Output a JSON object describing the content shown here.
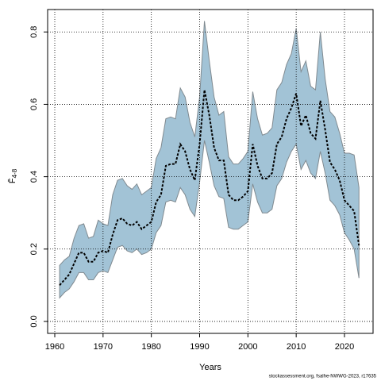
{
  "chart_data": {
    "type": "line_band",
    "xlabel": "Years",
    "ylabel": "F̄",
    "ylabel_subscript": "4-8",
    "footer": "stockassessment.org, fsalhe-NWWG-2023, r17635",
    "x": [
      1961,
      1962,
      1963,
      1964,
      1965,
      1966,
      1967,
      1968,
      1969,
      1970,
      1971,
      1972,
      1973,
      1974,
      1975,
      1976,
      1977,
      1978,
      1979,
      1980,
      1981,
      1982,
      1983,
      1984,
      1985,
      1986,
      1987,
      1988,
      1989,
      1990,
      1991,
      1992,
      1993,
      1994,
      1995,
      1996,
      1997,
      1998,
      1999,
      2000,
      2001,
      2002,
      2003,
      2004,
      2005,
      2006,
      2007,
      2008,
      2009,
      2010,
      2011,
      2012,
      2013,
      2014,
      2015,
      2016,
      2017,
      2018,
      2019,
      2020,
      2021,
      2022,
      2023
    ],
    "values": [
      0.1,
      0.115,
      0.13,
      0.16,
      0.19,
      0.19,
      0.165,
      0.165,
      0.19,
      0.195,
      0.19,
      0.24,
      0.28,
      0.285,
      0.27,
      0.265,
      0.275,
      0.255,
      0.265,
      0.275,
      0.33,
      0.35,
      0.43,
      0.435,
      0.435,
      0.49,
      0.47,
      0.42,
      0.39,
      0.49,
      0.64,
      0.57,
      0.48,
      0.445,
      0.445,
      0.35,
      0.335,
      0.335,
      0.345,
      0.36,
      0.49,
      0.43,
      0.395,
      0.395,
      0.41,
      0.49,
      0.51,
      0.56,
      0.59,
      0.63,
      0.54,
      0.57,
      0.52,
      0.505,
      0.61,
      0.53,
      0.44,
      0.42,
      0.39,
      0.335,
      0.32,
      0.305,
      0.21
    ],
    "upper": [
      0.155,
      0.17,
      0.18,
      0.23,
      0.265,
      0.27,
      0.23,
      0.235,
      0.28,
      0.27,
      0.265,
      0.35,
      0.39,
      0.395,
      0.375,
      0.365,
      0.38,
      0.35,
      0.36,
      0.37,
      0.45,
      0.48,
      0.56,
      0.565,
      0.56,
      0.645,
      0.62,
      0.55,
      0.51,
      0.62,
      0.83,
      0.72,
      0.62,
      0.57,
      0.58,
      0.455,
      0.435,
      0.435,
      0.45,
      0.47,
      0.635,
      0.56,
      0.515,
      0.52,
      0.535,
      0.64,
      0.66,
      0.71,
      0.74,
      0.81,
      0.69,
      0.72,
      0.65,
      0.64,
      0.8,
      0.67,
      0.58,
      0.565,
      0.52,
      0.465,
      0.465,
      0.46,
      0.37
    ],
    "lower": [
      0.065,
      0.08,
      0.09,
      0.11,
      0.135,
      0.135,
      0.115,
      0.115,
      0.135,
      0.14,
      0.135,
      0.17,
      0.205,
      0.21,
      0.195,
      0.19,
      0.2,
      0.185,
      0.19,
      0.2,
      0.245,
      0.265,
      0.33,
      0.335,
      0.33,
      0.37,
      0.35,
      0.31,
      0.29,
      0.385,
      0.5,
      0.44,
      0.375,
      0.345,
      0.34,
      0.26,
      0.255,
      0.255,
      0.265,
      0.275,
      0.38,
      0.33,
      0.3,
      0.3,
      0.31,
      0.375,
      0.395,
      0.44,
      0.47,
      0.49,
      0.42,
      0.445,
      0.41,
      0.395,
      0.47,
      0.41,
      0.335,
      0.32,
      0.295,
      0.245,
      0.225,
      0.2,
      0.12
    ],
    "color": "#000000",
    "band_color": "#a2c3d6",
    "band_edge_color": "#808a90",
    "xlim": [
      1958.52,
      2025.92
    ],
    "ylim": [
      -0.033,
      0.862
    ],
    "xticks": [
      1960,
      1970,
      1980,
      1990,
      2000,
      2010,
      2020
    ],
    "yticks": [
      {
        "value": 0,
        "label": "0.0"
      },
      0.2,
      0.4,
      0.6,
      0.8
    ],
    "grid": true
  }
}
